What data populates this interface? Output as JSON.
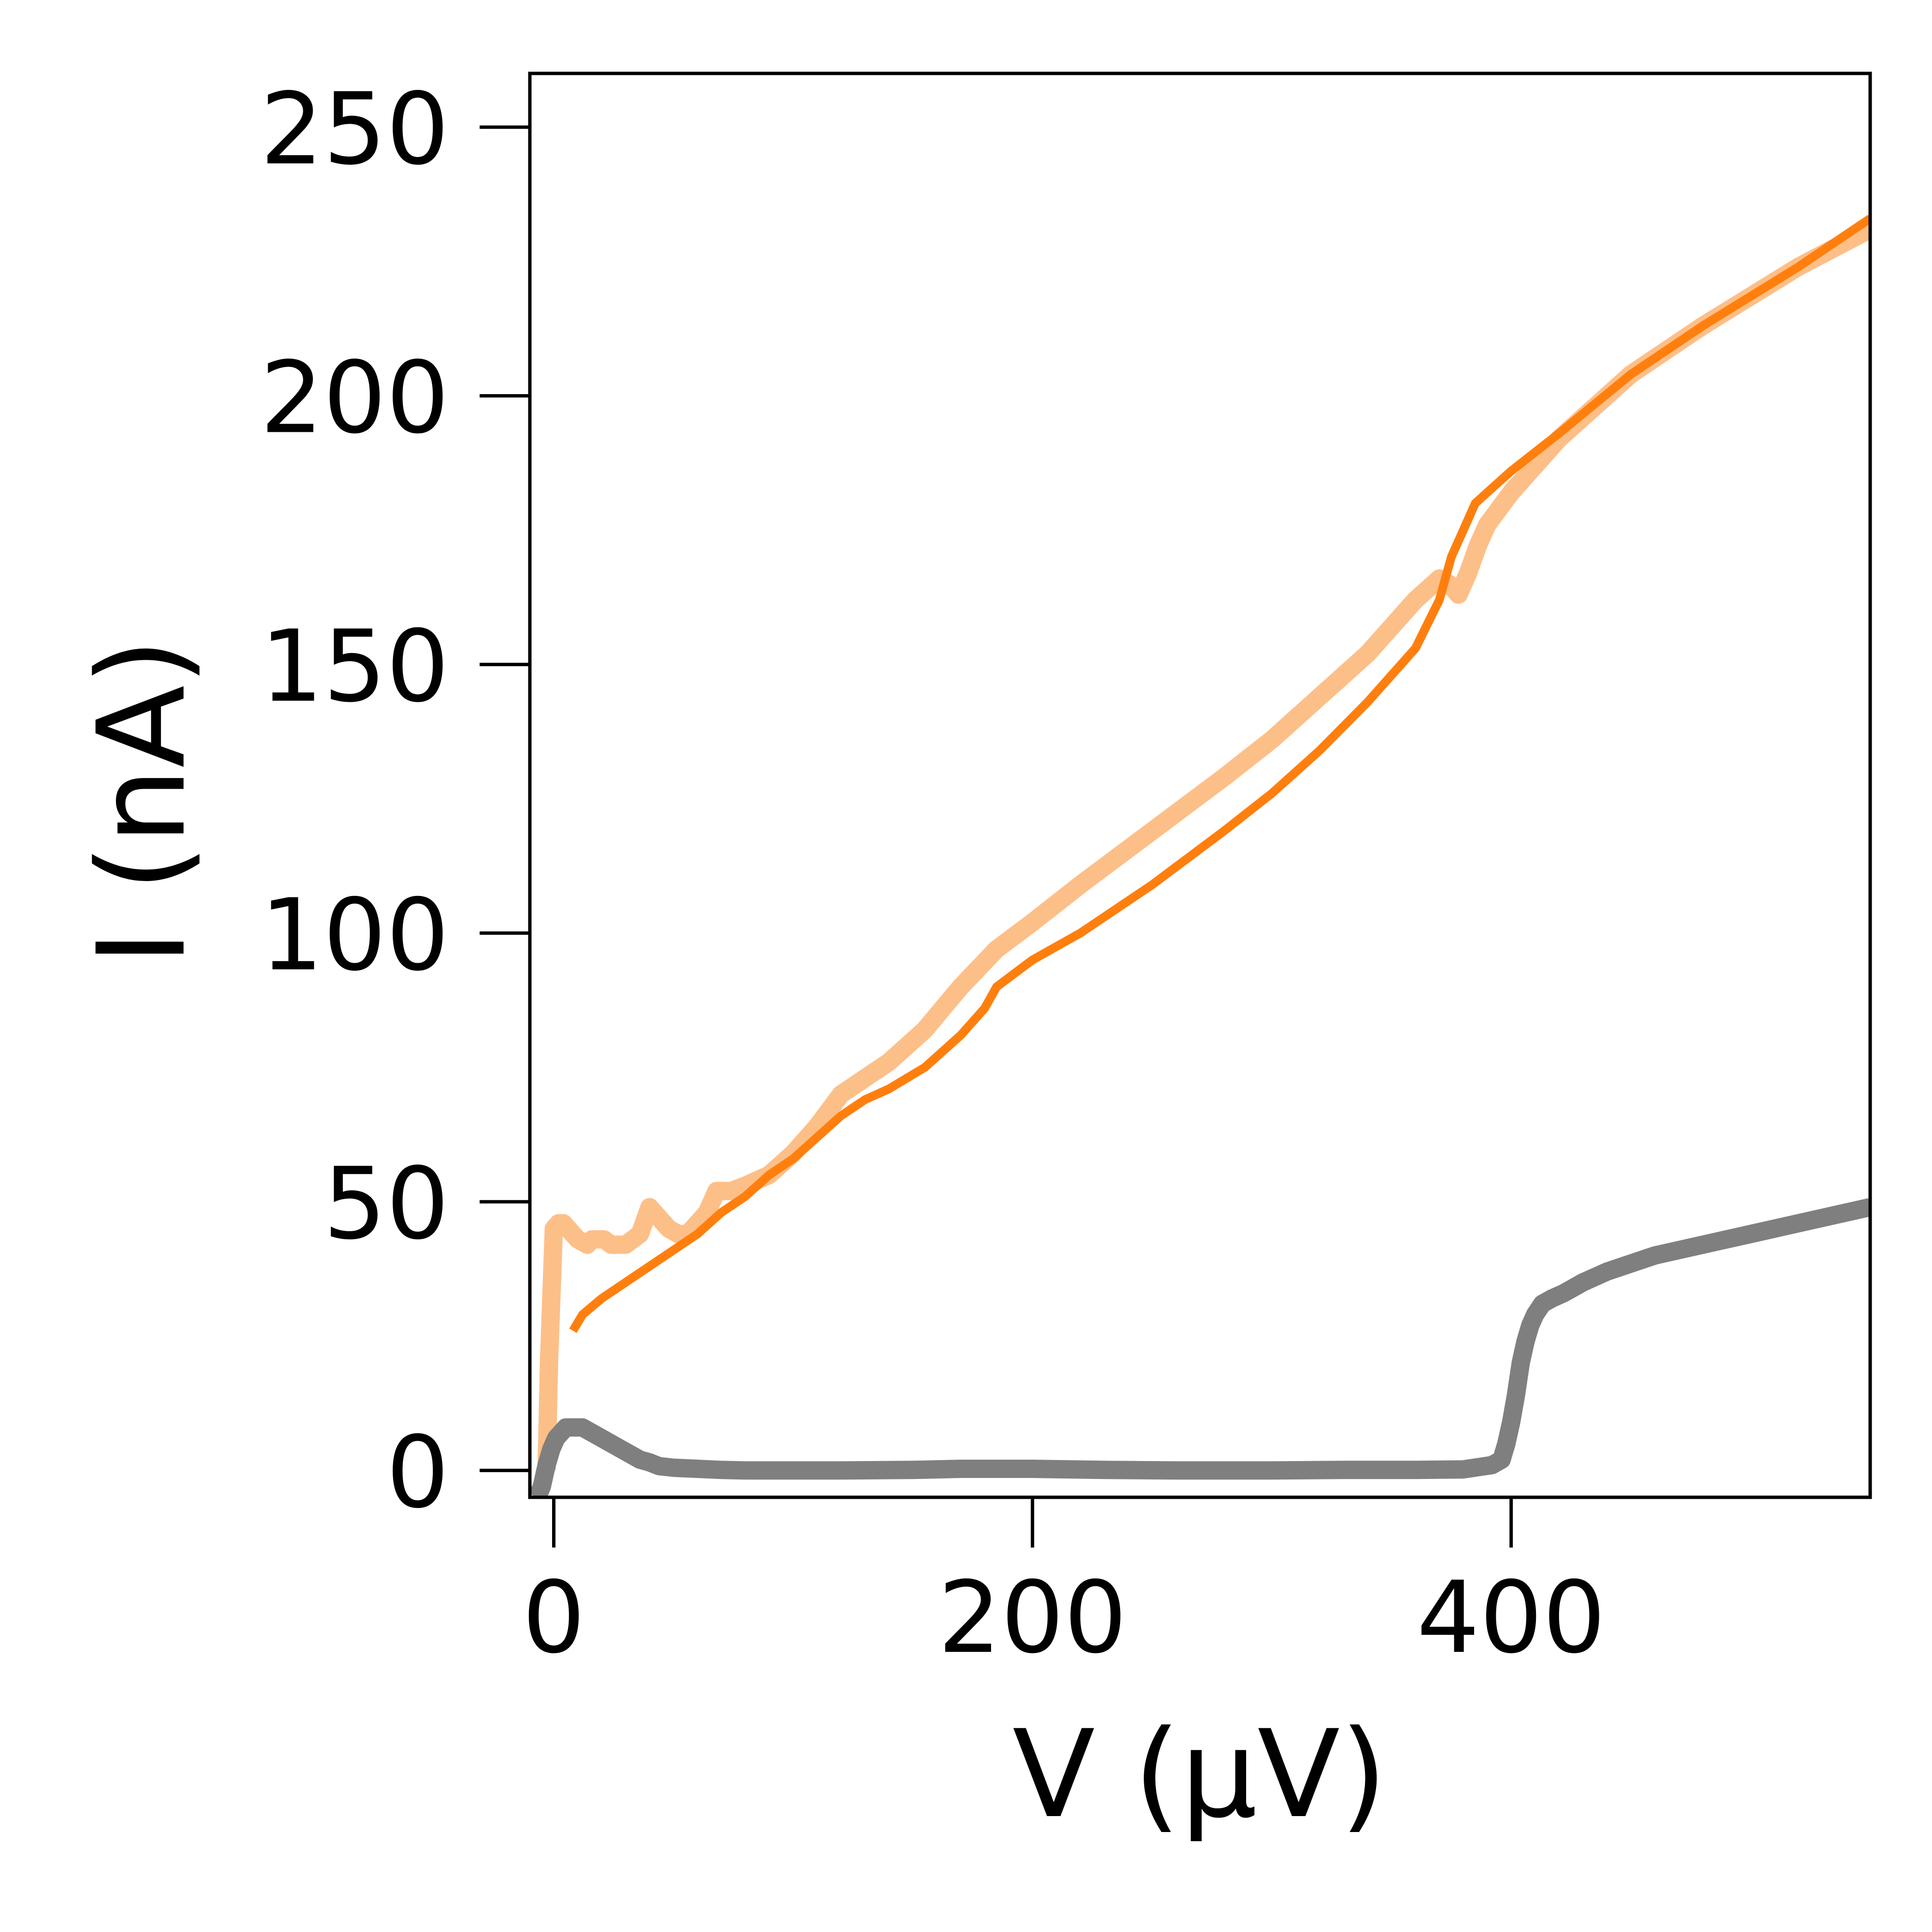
{
  "chart_data": {
    "type": "line",
    "title": "",
    "xlabel": "V (μV)",
    "ylabel": "I (nA)",
    "xlim": [
      -10,
      550
    ],
    "ylim": [
      -5,
      260
    ],
    "xticks": [
      0,
      200,
      400
    ],
    "xtick_labels": [
      "0",
      "200",
      "400"
    ],
    "yticks": [
      0,
      50,
      100,
      150,
      200,
      250
    ],
    "ytick_labels": [
      "0",
      "50",
      "100",
      "150",
      "200",
      "250"
    ],
    "grid": false,
    "legend": "none",
    "series": [
      {
        "color": "#fdbf88",
        "line_style": "thick",
        "x": [
          -3,
          -2,
          0,
          2,
          4,
          6,
          10,
          14,
          16,
          18,
          21,
          24,
          30,
          36,
          40,
          44,
          48,
          52,
          56,
          60,
          64,
          68,
          74,
          80,
          90,
          100,
          110,
          120,
          130,
          140,
          155,
          170,
          185,
          200,
          220,
          250,
          280,
          300,
          320,
          340,
          360,
          370,
          374,
          378,
          382,
          386,
          390,
          400,
          420,
          450,
          480,
          520,
          550
        ],
        "y": [
          0,
          20,
          45,
          46,
          46,
          45,
          43,
          42,
          43,
          43,
          43,
          42,
          42,
          44,
          49,
          47,
          45,
          44,
          44,
          46,
          48,
          52,
          52,
          53,
          55,
          59,
          64,
          70,
          73,
          76,
          82,
          90,
          97,
          102,
          109,
          119,
          129,
          136,
          144,
          152,
          162,
          166,
          165,
          163,
          167,
          172,
          176,
          182,
          192,
          204,
          213,
          224,
          231
        ]
      },
      {
        "color": "#ff7f0e",
        "line_style": "solid",
        "x": [
          8,
          12,
          20,
          30,
          40,
          50,
          60,
          70,
          80,
          90,
          100,
          110,
          120,
          130,
          140,
          155,
          170,
          180,
          185,
          200,
          220,
          250,
          280,
          300,
          320,
          340,
          360,
          370,
          375,
          380,
          385,
          390,
          400,
          420,
          450,
          480,
          520,
          550
        ],
        "y": [
          26,
          29,
          32,
          35,
          38,
          41,
          44,
          48,
          51,
          55,
          58,
          62,
          66,
          69,
          71,
          75,
          81,
          86,
          90,
          95,
          100,
          109,
          119,
          126,
          134,
          143,
          153,
          162,
          170,
          175,
          180,
          182,
          186,
          193,
          204,
          213,
          224,
          233
        ]
      },
      {
        "color": "#7f7f7f",
        "line_style": "thick",
        "x": [
          -7,
          -5,
          -3,
          -1,
          1,
          3,
          5,
          8,
          12,
          16,
          20,
          24,
          28,
          32,
          36,
          40,
          44,
          50,
          60,
          70,
          80,
          100,
          120,
          150,
          170,
          200,
          230,
          260,
          300,
          330,
          360,
          380,
          392,
          396,
          398,
          400,
          402,
          404,
          406,
          408,
          410,
          413,
          417,
          422,
          430,
          440,
          460,
          480,
          500,
          530,
          550
        ],
        "y": [
          -5,
          -3,
          1,
          4,
          6,
          7,
          8,
          8,
          8,
          7,
          6,
          5,
          4,
          3,
          2,
          1.5,
          0.8,
          0.5,
          0.3,
          0.1,
          0,
          0,
          0,
          0.1,
          0.3,
          0.3,
          0.1,
          0,
          0,
          0.1,
          0.1,
          0.2,
          1,
          2,
          5,
          9,
          14,
          20,
          24,
          27,
          29,
          31,
          32,
          33,
          35,
          37,
          40,
          42,
          44,
          47,
          49
        ]
      }
    ]
  }
}
